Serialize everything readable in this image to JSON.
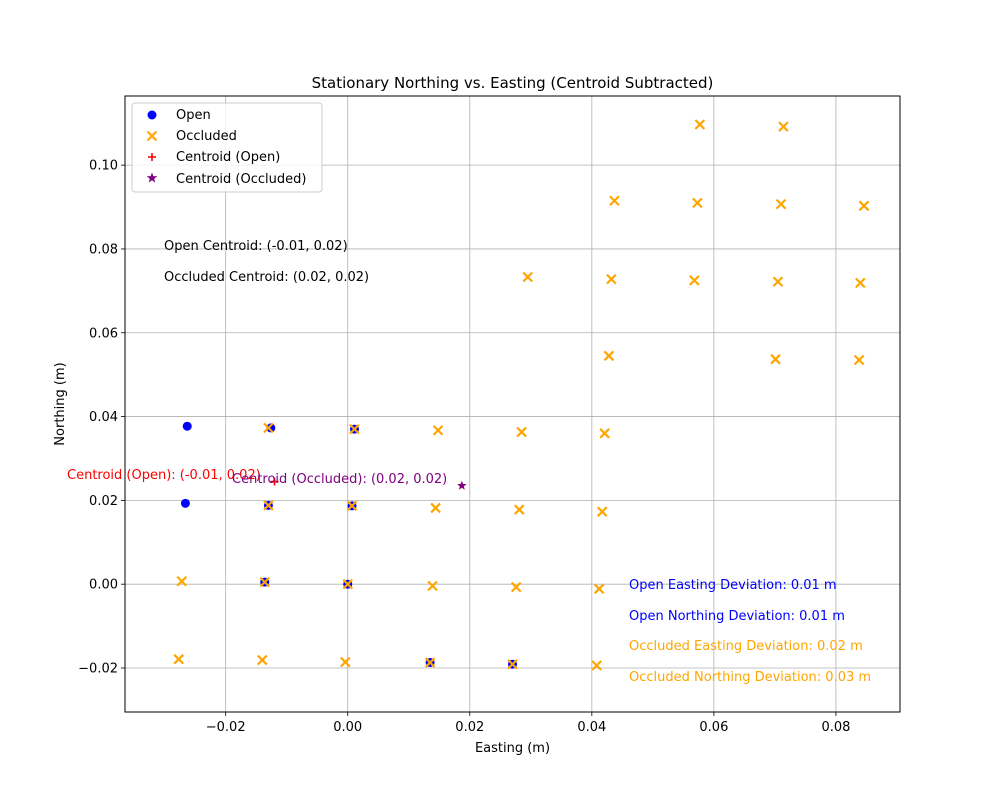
{
  "chart_data": {
    "type": "scatter",
    "title": "Stationary Northing vs. Easting (Centroid Subtracted)",
    "xlabel": "Easting (m)",
    "ylabel": "Northing (m)",
    "xlim": [
      -0.0365,
      0.0905
    ],
    "ylim": [
      -0.0305,
      0.1165
    ],
    "grid": true,
    "legend_position": "upper-left",
    "x_ticks": [
      -0.02,
      0.0,
      0.02,
      0.04,
      0.06,
      0.08
    ],
    "x_tick_labels": [
      "−0.02",
      "0.00",
      "0.02",
      "0.04",
      "0.06",
      "0.08"
    ],
    "y_ticks": [
      -0.02,
      0.0,
      0.02,
      0.04,
      0.06,
      0.08,
      0.1
    ],
    "y_tick_labels": [
      "−0.02",
      "0.00",
      "0.02",
      "0.04",
      "0.06",
      "0.08",
      "0.10"
    ],
    "series": [
      {
        "name": "Open",
        "marker": "circle",
        "color": "#0000ff",
        "points": [
          [
            -0.0263,
            0.0377
          ],
          [
            -0.0126,
            0.0373
          ],
          [
            0.0011,
            0.037
          ],
          [
            -0.0266,
            0.0193
          ],
          [
            -0.013,
            0.0188
          ],
          [
            0.0007,
            0.0187
          ],
          [
            -0.0136,
            0.0005
          ],
          [
            0.0,
            0.0
          ],
          [
            0.0135,
            -0.0187
          ],
          [
            0.027,
            -0.0191
          ]
        ]
      },
      {
        "name": "Occluded",
        "marker": "x",
        "color": "#ffa500",
        "points": [
          [
            0.0577,
            0.1097
          ],
          [
            0.0714,
            0.1092
          ],
          [
            0.0437,
            0.0915
          ],
          [
            0.0573,
            0.091
          ],
          [
            0.071,
            0.0907
          ],
          [
            0.0846,
            0.0903
          ],
          [
            0.0295,
            0.0733
          ],
          [
            0.0432,
            0.0728
          ],
          [
            0.0568,
            0.0725
          ],
          [
            0.0705,
            0.0722
          ],
          [
            0.084,
            0.0719
          ],
          [
            0.0428,
            0.0545
          ],
          [
            0.0701,
            0.0537
          ],
          [
            0.0838,
            0.0535
          ],
          [
            -0.013,
            0.0373
          ],
          [
            0.0011,
            0.037
          ],
          [
            0.0148,
            0.0367
          ],
          [
            0.0285,
            0.0363
          ],
          [
            0.0421,
            0.036
          ],
          [
            -0.013,
            0.0188
          ],
          [
            0.0007,
            0.0187
          ],
          [
            0.0144,
            0.0182
          ],
          [
            0.0281,
            0.0178
          ],
          [
            0.0417,
            0.0173
          ],
          [
            -0.0272,
            0.0007
          ],
          [
            -0.0136,
            0.0005
          ],
          [
            0.0,
            0.0
          ],
          [
            0.0139,
            -0.0004
          ],
          [
            0.0276,
            -0.0007
          ],
          [
            0.0412,
            -0.0011
          ],
          [
            -0.0277,
            -0.0179
          ],
          [
            -0.014,
            -0.0181
          ],
          [
            -0.0004,
            -0.0186
          ],
          [
            0.0135,
            -0.0187
          ],
          [
            0.027,
            -0.0191
          ],
          [
            0.0408,
            -0.0194
          ]
        ]
      },
      {
        "name": "Centroid (Open)",
        "marker": "plus",
        "color": "#ff0000",
        "points": [
          [
            -0.012,
            0.0245
          ]
        ]
      },
      {
        "name": "Centroid (Occluded)",
        "marker": "star",
        "color": "#800080",
        "points": [
          [
            0.0187,
            0.0235
          ]
        ]
      }
    ],
    "annotations": [
      {
        "text": "Open Centroid: (-0.01, 0.02)",
        "color": "#000000"
      },
      {
        "text": "Occluded Centroid: (0.02, 0.02)",
        "color": "#000000"
      },
      {
        "text": "Centroid (Open): (-0.01, 0.02)",
        "color": "#ff0000"
      },
      {
        "text": "Centroid (Occluded): (0.02, 0.02)",
        "color": "#800080"
      },
      {
        "text": "Open Easting Deviation: 0.01 m",
        "color": "#0000ff"
      },
      {
        "text": "Open Northing Deviation: 0.01 m",
        "color": "#0000ff"
      },
      {
        "text": "Occluded Easting Deviation: 0.02 m",
        "color": "#ffa500"
      },
      {
        "text": "Occluded Northing Deviation: 0.03 m",
        "color": "#ffa500"
      }
    ]
  }
}
